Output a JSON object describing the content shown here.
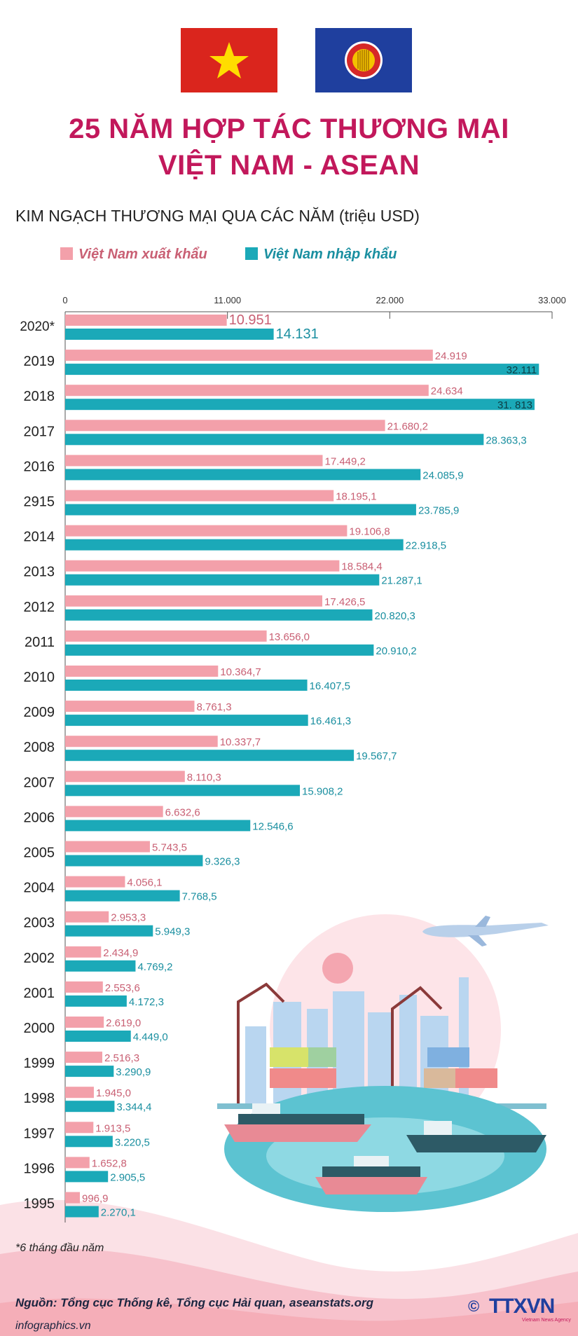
{
  "header": {
    "title_line1": "25 NĂM HỢP TÁC THƯƠNG MẠI",
    "title_line2": "VIỆT NAM - ASEAN",
    "subtitle": "KIM NGẠCH THƯƠNG MẠI QUA CÁC NĂM (triệu USD)"
  },
  "legend": {
    "export_label": "Việt Nam xuất khẩu",
    "import_label": "Việt Nam nhập khẩu"
  },
  "colors": {
    "export": "#f3a0aa",
    "import": "#1ba9b8",
    "export_text": "#c96074",
    "import_text": "#1a8fa0",
    "title": "#c2185b"
  },
  "chart_data": {
    "type": "bar",
    "orientation": "horizontal",
    "xlim": [
      0,
      33000
    ],
    "x_ticks": [
      "0",
      "11.000",
      "22.000",
      "33.000"
    ],
    "categories": [
      "2020*",
      "2019",
      "2018",
      "2017",
      "2016",
      "2915",
      "2014",
      "2013",
      "2012",
      "2011",
      "2010",
      "2009",
      "2008",
      "2007",
      "2006",
      "2005",
      "2004",
      "2003",
      "2002",
      "2001",
      "2000",
      "1999",
      "1998",
      "1997",
      "1996",
      "1995"
    ],
    "series": [
      {
        "name": "Việt Nam xuất khẩu",
        "values": [
          10951,
          24919,
          24634,
          21680.2,
          17449.2,
          18195.1,
          19106.8,
          18584.4,
          17426.5,
          13656.0,
          10364.7,
          8761.3,
          10337.7,
          8110.3,
          6632.6,
          5743.5,
          4056.1,
          2953.3,
          2434.9,
          2553.6,
          2619.0,
          2516.3,
          1945.0,
          1913.5,
          1652.8,
          996.9
        ],
        "labels": [
          "10.951",
          "24.919",
          "24.634",
          "21.680,2",
          "17.449,2",
          "18.195,1",
          "19.106,8",
          "18.584,4",
          "17.426,5",
          "13.656,0",
          "10.364,7",
          "8.761,3",
          "10.337,7",
          "8.110,3",
          "6.632,6",
          "5.743,5",
          "4.056,1",
          "2.953,3",
          "2.434,9",
          "2.553,6",
          "2.619,0",
          "2.516,3",
          "1.945,0",
          "1.913,5",
          "1.652,8",
          "996,9"
        ]
      },
      {
        "name": "Việt Nam nhập khẩu",
        "values": [
          14131,
          32111,
          31813,
          28363.3,
          24085.9,
          23785.9,
          22918.5,
          21287.1,
          20820.3,
          20910.2,
          16407.5,
          16461.3,
          19567.7,
          15908.2,
          12546.6,
          9326.3,
          7768.5,
          5949.3,
          4769.2,
          4172.3,
          4449.0,
          3290.9,
          3344.4,
          3220.5,
          2905.5,
          2270.1
        ],
        "labels": [
          "14.131",
          "32.111",
          "31. 813",
          "28.363,3",
          "24.085,9",
          "23.785,9",
          "22.918,5",
          "21.287,1",
          "20.820,3",
          "20.910,2",
          "16.407,5",
          "16.461,3",
          "19.567,7",
          "15.908,2",
          "12.546,6",
          "9.326,3",
          "7.768,5",
          "5.949,3",
          "4.769,2",
          "4.172,3",
          "4.449,0",
          "3.290,9",
          "3.344,4",
          "3.220,5",
          "2.905,5",
          "2.270,1"
        ]
      }
    ]
  },
  "footer": {
    "note": "*6 tháng đầu năm",
    "source": "Nguồn: Tổng cục Thống kê, Tổng cục Hải quan, aseanstats.org",
    "site": "infographics.vn",
    "logo_text": "TTXVN",
    "logo_sub": "Vietnam News Agency",
    "copyright": "©"
  }
}
